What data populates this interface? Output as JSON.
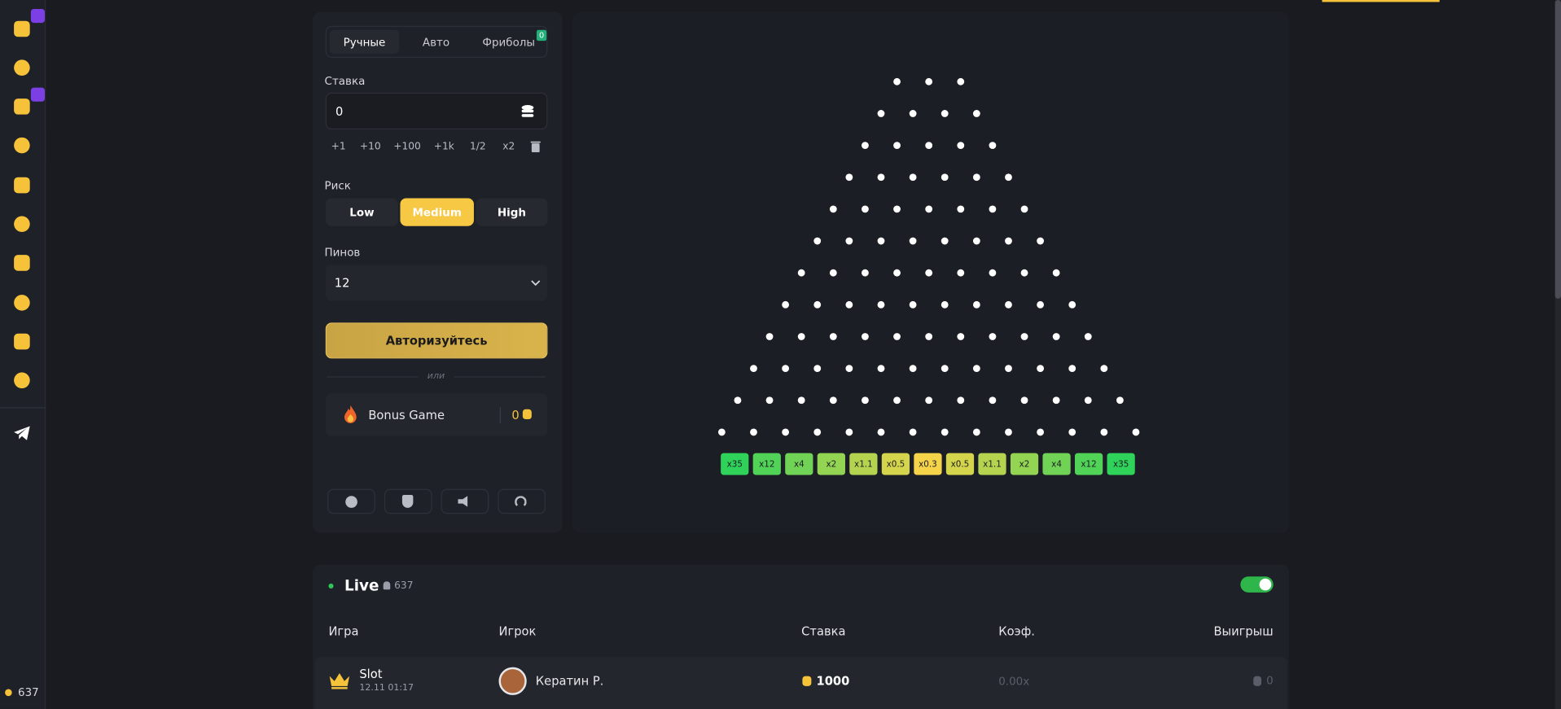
{
  "sidebar": {
    "online": "637"
  },
  "tabs": {
    "items": [
      "Ручные",
      "Авто",
      "Фриболы"
    ],
    "freeballs_badge": "0"
  },
  "bet": {
    "label": "Ставка",
    "value": "0",
    "quick": [
      "+1",
      "+10",
      "+100",
      "+1k",
      "1/2",
      "x2"
    ]
  },
  "risk": {
    "label": "Риск",
    "options": [
      "Low",
      "Medium",
      "High"
    ]
  },
  "pins": {
    "label": "Пинов",
    "value": "12"
  },
  "login_button": "Авторизуйтесь",
  "separator": "или",
  "bonus": {
    "label": "Bonus Game",
    "value": "0"
  },
  "board": {
    "multipliers": [
      "x35",
      "x12",
      "x4",
      "x2",
      "x1.1",
      "x0.5",
      "x0.3",
      "x0.5",
      "x1.1",
      "x2",
      "x4",
      "x12",
      "x35"
    ]
  },
  "live": {
    "title": "Live",
    "online": "637",
    "columns": [
      "Игра",
      "Игрок",
      "Ставка",
      "Коэф.",
      "Выигрыш"
    ],
    "rows": [
      {
        "game": "Slot",
        "time": "12.11 01:17",
        "player": "Кератин Р.",
        "bet": "1000",
        "coef": "0.00x",
        "win": "0"
      }
    ]
  }
}
